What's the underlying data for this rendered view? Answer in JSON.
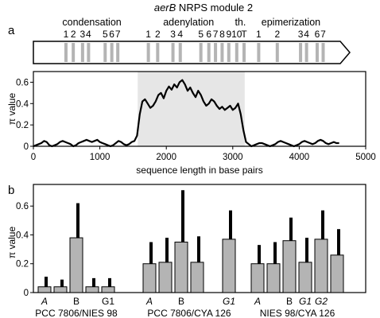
{
  "chart_data": [
    {
      "type": "diagram",
      "title_italic": "aerB",
      "title_rest": " NRPS module 2",
      "panel_label": "a",
      "domains": [
        {
          "name": "condensation",
          "motifs": [
            {
              "label": "1",
              "x": 490
            },
            {
              "label": "2",
              "x": 600
            },
            {
              "label": "3",
              "x": 740
            },
            {
              "label": "4",
              "x": 830
            },
            {
              "label": "5",
              "x": 1080
            },
            {
              "label": "6",
              "x": 1180
            },
            {
              "label": "7",
              "x": 1270
            }
          ]
        },
        {
          "name": "adenylation",
          "motifs": [
            {
              "label": "1",
              "x": 1730
            },
            {
              "label": "2",
              "x": 1870
            },
            {
              "label": "3",
              "x": 2100
            },
            {
              "label": "4",
              "x": 2210
            },
            {
              "label": "5",
              "x": 2520
            },
            {
              "label": "6",
              "x": 2640
            },
            {
              "label": "7",
              "x": 2740
            },
            {
              "label": "8",
              "x": 2840
            },
            {
              "label": "9",
              "x": 2940
            }
          ]
        },
        {
          "name": "th.",
          "motifs": [
            {
              "label": "10",
              "x": 3060
            },
            {
              "label": "T",
              "x": 3170
            }
          ]
        },
        {
          "name": "epimerization",
          "motifs": [
            {
              "label": "1",
              "x": 3390
            },
            {
              "label": "2",
              "x": 3670
            },
            {
              "label": "3",
              "x": 4020
            },
            {
              "label": "4",
              "x": 4110
            },
            {
              "label": "6",
              "x": 4270
            },
            {
              "label": "7",
              "x": 4360
            }
          ]
        }
      ]
    },
    {
      "type": "line",
      "ylabel": "π value",
      "xlabel": "sequence length in base pairs",
      "xlim": [
        0,
        5000
      ],
      "ylim": [
        0,
        0.7
      ],
      "xticks": [
        0,
        1000,
        2000,
        3000,
        4000,
        5000
      ],
      "yticks": [
        0,
        0.2,
        0.4,
        0.6
      ],
      "yticklabels": [
        "0",
        "0.2",
        "0.4",
        "0.6"
      ],
      "shaded_region": [
        1570,
        3180
      ],
      "series": [
        {
          "x": [
            0,
            40,
            80,
            120,
            160,
            200,
            240,
            280,
            320,
            360,
            400,
            440,
            480,
            520,
            560,
            600,
            640,
            680,
            720,
            760,
            800,
            840,
            880,
            920,
            960,
            1000,
            1040,
            1080,
            1120,
            1160,
            1200,
            1240,
            1280,
            1320,
            1360,
            1400,
            1440,
            1480,
            1520,
            1560,
            1600,
            1640,
            1680,
            1720,
            1760,
            1800,
            1840,
            1880,
            1920,
            1960,
            2000,
            2040,
            2080,
            2120,
            2160,
            2200,
            2240,
            2280,
            2320,
            2360,
            2400,
            2440,
            2480,
            2520,
            2560,
            2600,
            2640,
            2680,
            2720,
            2760,
            2800,
            2840,
            2880,
            2920,
            2960,
            3000,
            3040,
            3080,
            3120,
            3160,
            3200,
            3240,
            3280,
            3320,
            3360,
            3400,
            3440,
            3480,
            3520,
            3560,
            3600,
            3640,
            3680,
            3720,
            3760,
            3800,
            3840,
            3880,
            3920,
            3960,
            4000,
            4040,
            4080,
            4120,
            4160,
            4200,
            4240,
            4280,
            4320,
            4360,
            4400,
            4440,
            4480,
            4520,
            4560,
            4600
          ],
          "y": [
            0.0,
            0.01,
            0.02,
            0.03,
            0.05,
            0.04,
            0.01,
            0.0,
            0.01,
            0.02,
            0.04,
            0.05,
            0.04,
            0.03,
            0.02,
            0.0,
            0.01,
            0.03,
            0.04,
            0.05,
            0.06,
            0.05,
            0.04,
            0.05,
            0.06,
            0.04,
            0.03,
            0.02,
            0.01,
            0.0,
            0.01,
            0.03,
            0.05,
            0.04,
            0.02,
            0.01,
            0.02,
            0.04,
            0.05,
            0.1,
            0.3,
            0.42,
            0.44,
            0.4,
            0.36,
            0.38,
            0.42,
            0.48,
            0.5,
            0.45,
            0.52,
            0.56,
            0.53,
            0.58,
            0.55,
            0.6,
            0.62,
            0.58,
            0.52,
            0.55,
            0.5,
            0.46,
            0.52,
            0.48,
            0.42,
            0.38,
            0.4,
            0.44,
            0.42,
            0.38,
            0.35,
            0.37,
            0.34,
            0.36,
            0.38,
            0.34,
            0.36,
            0.4,
            0.3,
            0.15,
            0.04,
            0.02,
            0.0,
            0.01,
            0.02,
            0.03,
            0.03,
            0.02,
            0.01,
            0.0,
            0.01,
            0.02,
            0.04,
            0.05,
            0.04,
            0.03,
            0.02,
            0.01,
            0.0,
            0.01,
            0.02,
            0.04,
            0.05,
            0.04,
            0.03,
            0.02,
            0.03,
            0.05,
            0.06,
            0.05,
            0.03,
            0.02,
            0.03,
            0.04,
            0.03,
            0.03
          ]
        }
      ]
    },
    {
      "type": "bar",
      "panel_label": "b",
      "ylabel": "π value",
      "ylim": [
        0,
        0.75
      ],
      "yticks": [
        0,
        0.2,
        0.4,
        0.6
      ],
      "yticklabels": [
        "0",
        "0.2",
        "0.4",
        "0.6"
      ],
      "groups": [
        {
          "name": "PCC 7806/NIES 98",
          "category_labels": [
            {
              "label": "A",
              "italic": true,
              "index": 0
            },
            {
              "label": "B",
              "italic": false,
              "index": 2
            },
            {
              "label": "G1",
              "italic": false,
              "index": 4
            }
          ],
          "bars": [
            {
              "value": 0.04,
              "error": 0.11
            },
            {
              "value": 0.04,
              "error": 0.09
            },
            {
              "value": 0.38,
              "error": 0.62
            },
            {
              "value": 0.04,
              "error": 0.1
            },
            {
              "value": 0.04,
              "error": 0.1
            }
          ]
        },
        {
          "name": "PCC 7806/CYA 126",
          "category_labels": [
            {
              "label": "A",
              "italic": true,
              "index": 0
            },
            {
              "label": "B",
              "italic": false,
              "index": 2
            },
            {
              "label": "G1",
              "italic": true,
              "index": 4
            }
          ],
          "bars": [
            {
              "value": 0.2,
              "error": 0.35
            },
            {
              "value": 0.21,
              "error": 0.38
            },
            {
              "value": 0.35,
              "error": 0.71
            },
            {
              "value": 0.21,
              "error": 0.39
            },
            {
              "value": 0.37,
              "error": 0.57
            }
          ]
        },
        {
          "name": "NIES 98/CYA 126",
          "category_labels": [
            {
              "label": "A",
              "italic": true,
              "index": 0
            },
            {
              "label": "B",
              "italic": false,
              "index": 2
            },
            {
              "label": "G1",
              "italic": true,
              "index": 3
            },
            {
              "label": "G2",
              "italic": true,
              "index": 4
            }
          ],
          "bars": [
            {
              "value": 0.2,
              "error": 0.33
            },
            {
              "value": 0.2,
              "error": 0.35
            },
            {
              "value": 0.36,
              "error": 0.52
            },
            {
              "value": 0.21,
              "error": 0.38
            },
            {
              "value": 0.37,
              "error": 0.57
            },
            {
              "value": 0.26,
              "error": 0.44
            }
          ]
        }
      ]
    }
  ]
}
